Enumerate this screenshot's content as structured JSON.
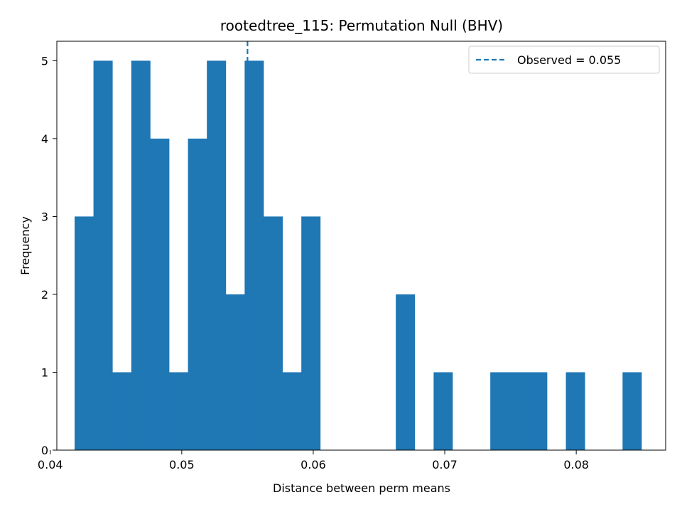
{
  "chart_data": {
    "type": "bar",
    "title": "rootedtree_115: Permutation Null (BHV)",
    "xlabel": "Distance between perm means",
    "ylabel": "Frequency",
    "xlim": [
      0.0405,
      0.0868
    ],
    "ylim": [
      0,
      5.25
    ],
    "xticks": [
      0.04,
      0.05,
      0.06,
      0.07,
      0.08
    ],
    "xtick_labels": [
      "0.04",
      "0.05",
      "0.06",
      "0.07",
      "0.08"
    ],
    "yticks": [
      0,
      1,
      2,
      3,
      4,
      5
    ],
    "ytick_labels": [
      "0",
      "1",
      "2",
      "3",
      "4",
      "5"
    ],
    "bin_start": 0.04185,
    "bin_width": 0.001437,
    "counts": [
      3,
      5,
      1,
      5,
      4,
      1,
      4,
      5,
      2,
      5,
      3,
      1,
      3,
      0,
      0,
      0,
      0,
      2,
      0,
      1,
      0,
      0,
      1,
      1,
      1,
      0,
      1,
      0,
      0,
      1
    ],
    "bar_color": "#1f77b4",
    "observed": {
      "value": 0.055,
      "legend_label": "Observed = 0.055",
      "color": "#1f77b4",
      "style": "dashed"
    },
    "legend_position": "top-right",
    "grid": false
  }
}
